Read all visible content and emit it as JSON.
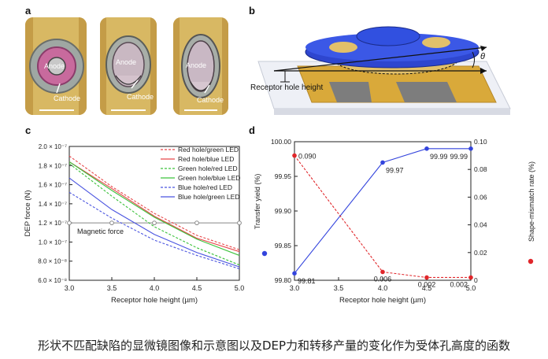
{
  "panels": {
    "a": "a",
    "b": "b",
    "c": "c",
    "d": "d"
  },
  "panel_a": {
    "labels": [
      {
        "anode": "Anode",
        "cathode": "Cathode"
      },
      {
        "anode": "Anode",
        "cathode": "Cathode"
      },
      {
        "anode": "Anode",
        "cathode": "Cathode"
      }
    ]
  },
  "panel_b": {
    "receptor_label": "Receptor hole height",
    "theta": "θ"
  },
  "caption": "形状不匹配缺陷的显微镜图像和示意图以及DEP力和转移产量的变化作为受体孔高度的函数",
  "chart_data": [
    {
      "type": "line",
      "id": "c",
      "xlabel": "Receptor hole height (µm)",
      "ylabel": "DEP force (N)",
      "xlim": [
        3.0,
        5.0
      ],
      "ylim": [
        6e-08,
        2e-07
      ],
      "xticks": [
        "3.0",
        "3.5",
        "4.0",
        "4.5",
        "5.0"
      ],
      "yticks": [
        "6.0 × 10⁻⁸",
        "8.0 × 10⁻⁸",
        "1.0 × 10⁻⁷",
        "1.2 × 10⁻⁷",
        "1.4 × 10⁻⁷",
        "1.6 × 10⁻⁷",
        "1.8 × 10⁻⁷",
        "2.0 × 10⁻⁷"
      ],
      "legend_position": "top-right",
      "x": [
        3.0,
        3.5,
        4.0,
        4.5,
        5.0
      ],
      "series": [
        {
          "name": "Red hole/green LED",
          "color": "#e8474a",
          "dash": true,
          "values": [
            1.9e-07,
            1.58e-07,
            1.3e-07,
            1.07e-07,
            9.2e-08
          ]
        },
        {
          "name": "Red hole/blue LED",
          "color": "#e8474a",
          "dash": false,
          "values": [
            1.84e-07,
            1.56e-07,
            1.27e-07,
            1.04e-07,
            9e-08
          ]
        },
        {
          "name": "Green hole/red LED",
          "color": "#3cc23c",
          "dash": true,
          "values": [
            1.82e-07,
            1.48e-07,
            1.16e-07,
            9.4e-08,
            7.6e-08
          ]
        },
        {
          "name": "Green hole/blue LED",
          "color": "#3cc23c",
          "dash": false,
          "values": [
            1.84e-07,
            1.54e-07,
            1.26e-07,
            1.03e-07,
            8.6e-08
          ]
        },
        {
          "name": "Blue hole/red LED",
          "color": "#4b55e0",
          "dash": true,
          "values": [
            1.52e-07,
            1.25e-07,
            1.02e-07,
            8.6e-08,
            7.2e-08
          ]
        },
        {
          "name": "Blue hole/green LED",
          "color": "#4b55e0",
          "dash": false,
          "values": [
            1.67e-07,
            1.34e-07,
            1.08e-07,
            8.9e-08,
            7.4e-08
          ]
        }
      ],
      "reference_line": {
        "name": "Magnetic force",
        "value": 1.2e-07,
        "color": "#888888",
        "x": [
          3.0,
          3.5,
          4.0,
          4.5,
          5.0
        ]
      }
    },
    {
      "type": "line",
      "id": "d",
      "xlabel": "Receptor hole height (µm)",
      "ylabel_left": "Transfer yield (%)",
      "ylabel_right": "Shape-mismatch rate (%)",
      "xlim": [
        3.0,
        5.0
      ],
      "ylim_left": [
        99.8,
        100.0
      ],
      "ylim_right": [
        0,
        0.1
      ],
      "xticks": [
        "3.0",
        "3.5",
        "4.0",
        "4.5",
        "5.0"
      ],
      "yticks_left": [
        "99.80",
        "99.85",
        "99.90",
        "99.95",
        "100.00"
      ],
      "yticks_right": [
        "0",
        "0.02",
        "0.04",
        "0.06",
        "0.08",
        "0.10"
      ],
      "x": [
        3.0,
        4.0,
        4.5,
        5.0
      ],
      "series": [
        {
          "name": "Transfer yield",
          "axis": "left",
          "color": "#3344dd",
          "dash": false,
          "values": [
            99.81,
            99.97,
            99.99,
            99.99
          ],
          "labels": [
            "99.81",
            "99.97",
            "99.99",
            "99.99"
          ]
        },
        {
          "name": "Shape-mismatch rate",
          "axis": "right",
          "color": "#e0262a",
          "dash": true,
          "values": [
            0.09,
            0.006,
            0.002,
            0.002
          ],
          "labels": [
            "0.090",
            "0.006",
            "0.002",
            "0.002"
          ]
        }
      ]
    }
  ]
}
